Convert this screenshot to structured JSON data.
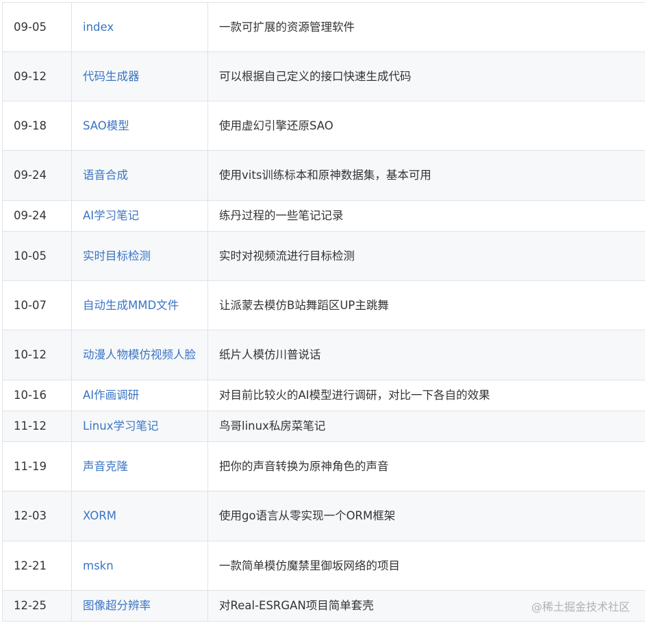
{
  "rows": [
    {
      "date": "09-05",
      "name": "index",
      "desc": "一款可扩展的资源管理软件"
    },
    {
      "date": "09-12",
      "name": "代码生成器",
      "desc": "可以根据自己定义的接口快速生成代码"
    },
    {
      "date": "09-18",
      "name": "SAO模型",
      "desc": "使用虚幻引擎还原SAO"
    },
    {
      "date": "09-24",
      "name": "语音合成",
      "desc": "使用vits训练标本和原神数据集，基本可用"
    },
    {
      "date": "09-24",
      "name": "AI学习笔记",
      "desc": "练丹过程的一些笔记记录"
    },
    {
      "date": "10-05",
      "name": "实时目标检测",
      "desc": "实时对视频流进行目标检测"
    },
    {
      "date": "10-07",
      "name": "自动生成MMD文件",
      "desc": "让派蒙去模仿B站舞蹈区UP主跳舞"
    },
    {
      "date": "10-12",
      "name": "动漫人物模仿视频人脸",
      "desc": "纸片人模仿川普说话"
    },
    {
      "date": "10-16",
      "name": "AI作画调研",
      "desc": "对目前比较火的AI模型进行调研，对比一下各自的效果"
    },
    {
      "date": "11-12",
      "name": "Linux学习笔记",
      "desc": "鸟哥linux私房菜笔记"
    },
    {
      "date": "11-19",
      "name": "声音克隆",
      "desc": "把你的声音转换为原神角色的声音"
    },
    {
      "date": "12-03",
      "name": "XORM",
      "desc": "使用go语言从零实现一个ORM框架"
    },
    {
      "date": "12-21",
      "name": "mskn",
      "desc": "一款简单模仿魔禁里御坂网络的项目"
    },
    {
      "date": "12-25",
      "name": "图像超分辨率",
      "desc": "对Real-ESRGAN项目简单套壳"
    }
  ],
  "watermark": "@稀土掘金技术社区"
}
